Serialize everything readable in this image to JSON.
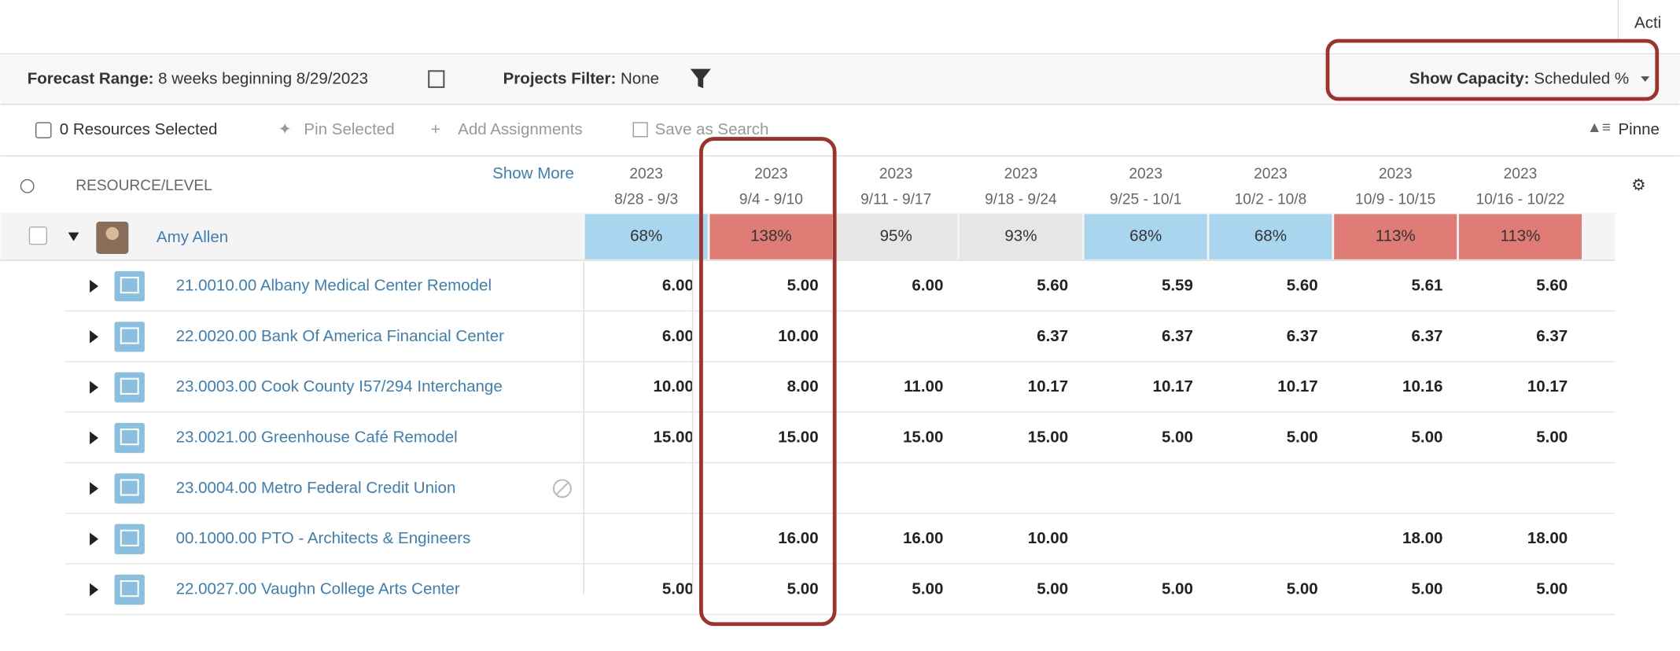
{
  "top_right": "Acti",
  "toolbar": {
    "forecast_label": "Forecast Range:",
    "forecast_value": "8 weeks beginning 8/29/2023",
    "filter_label": "Projects Filter:",
    "filter_value": "None",
    "capacity_label": "Show Capacity:",
    "capacity_value": "Scheduled %"
  },
  "actions": {
    "selected": "0 Resources Selected",
    "pin": "Pin Selected",
    "add": "Add Assignments",
    "save": "Save as Search",
    "pinned": "Pinne"
  },
  "table": {
    "header": "RESOURCE/LEVEL",
    "show_more": "Show More",
    "columns": [
      {
        "year": "2023",
        "range": "8/28 - 9/3"
      },
      {
        "year": "2023",
        "range": "9/4 - 9/10"
      },
      {
        "year": "2023",
        "range": "9/11 - 9/17"
      },
      {
        "year": "2023",
        "range": "9/18 - 9/24"
      },
      {
        "year": "2023",
        "range": "9/25 - 10/1"
      },
      {
        "year": "2023",
        "range": "10/2 - 10/8"
      },
      {
        "year": "2023",
        "range": "10/9 - 10/15"
      },
      {
        "year": "2023",
        "range": "10/16 - 10/22"
      }
    ],
    "resource": {
      "name": "Amy Allen",
      "capacity": [
        "68%",
        "138%",
        "95%",
        "93%",
        "68%",
        "68%",
        "113%",
        "113%"
      ],
      "colors": [
        "#a9d5ee",
        "#e07c76",
        "#e6e6e6",
        "#e6e6e6",
        "#a9d5ee",
        "#a9d5ee",
        "#e07c76",
        "#e07c76"
      ]
    },
    "projects": [
      {
        "label": "21.0010.00 Albany Medical Center Remodel",
        "values": [
          "6.00",
          "5.00",
          "6.00",
          "5.60",
          "5.59",
          "5.60",
          "5.61",
          "5.60"
        ]
      },
      {
        "label": "22.0020.00 Bank Of America Financial Center",
        "values": [
          "6.00",
          "10.00",
          null,
          "6.37",
          "6.37",
          "6.37",
          "6.37",
          "6.37"
        ]
      },
      {
        "label": "23.0003.00 Cook County I57/294 Interchange",
        "values": [
          "10.00",
          "8.00",
          "11.00",
          "10.17",
          "10.17",
          "10.17",
          "10.16",
          "10.17"
        ]
      },
      {
        "label": "23.0021.00 Greenhouse Café Remodel",
        "values": [
          "15.00",
          "15.00",
          "15.00",
          "15.00",
          "5.00",
          "5.00",
          "5.00",
          "5.00"
        ]
      },
      {
        "label": "23.0004.00 Metro Federal Credit Union",
        "values": [
          null,
          null,
          null,
          null,
          null,
          null,
          null,
          null
        ],
        "disabled": true
      },
      {
        "label": "00.1000.00 PTO - Architects & Engineers",
        "values": [
          null,
          "16.00",
          "16.00",
          "10.00",
          null,
          null,
          "18.00",
          "18.00"
        ]
      },
      {
        "label": "22.0027.00 Vaughn College Arts Center",
        "values": [
          "5.00",
          "5.00",
          "5.00",
          "5.00",
          "5.00",
          "5.00",
          "5.00",
          "5.00"
        ]
      }
    ]
  }
}
